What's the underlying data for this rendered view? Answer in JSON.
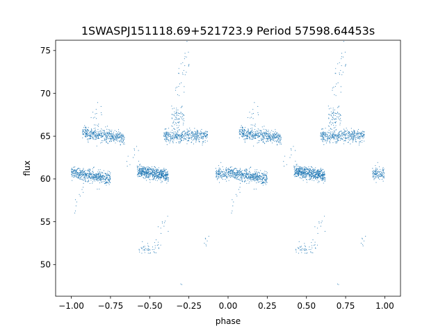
{
  "chart_data": {
    "type": "scatter",
    "title": "1SWASPJ151118.69+521723.9 Period 57598.64453s",
    "xlabel": "phase",
    "ylabel": "flux",
    "xlim": [
      -1.1,
      1.1
    ],
    "ylim": [
      46.3,
      76.2
    ],
    "x_ticks": [
      -1.0,
      -0.75,
      -0.5,
      -0.25,
      0.0,
      0.25,
      0.5,
      0.75,
      1.0
    ],
    "x_tick_labels": [
      "−1.00",
      "−0.75",
      "−0.50",
      "−0.25",
      "0.00",
      "0.25",
      "0.50",
      "0.75",
      "1.00"
    ],
    "y_ticks": [
      50,
      55,
      60,
      65,
      70,
      75
    ],
    "y_tick_labels": [
      "50",
      "55",
      "60",
      "65",
      "70",
      "75"
    ],
    "grid": false,
    "marker_color": "#1f77b4",
    "phase_period": 1.0,
    "series": [
      {
        "clusters": [
          {
            "x_range": [
              0.0,
              0.25
            ],
            "y_start": 60.8,
            "y_end": 60.0,
            "y_spread": 0.35,
            "count": 520
          },
          {
            "x_range": [
              0.07,
              0.34
            ],
            "y_start": 65.4,
            "y_end": 64.8,
            "y_spread": 0.35,
            "count": 460
          },
          {
            "x_range": [
              0.42,
              0.62
            ],
            "y_start": 60.9,
            "y_end": 60.4,
            "y_spread": 0.35,
            "count": 580
          },
          {
            "x_range": [
              0.59,
              0.87
            ],
            "y_start": 65.0,
            "y_end": 65.1,
            "y_spread": 0.35,
            "count": 430
          },
          {
            "x_range": [
              0.64,
              0.72
            ],
            "y_start": 67.3,
            "y_end": 67.3,
            "y_spread": 0.7,
            "count": 70
          },
          {
            "x_range": [
              0.66,
              0.76
            ],
            "y_start": 71.0,
            "y_end": 73.5,
            "y_spread": 1.3,
            "count": 30
          },
          {
            "x_range": [
              0.43,
              0.56
            ],
            "y_start": 51.8,
            "y_end": 52.0,
            "y_spread": 0.4,
            "count": 45
          },
          {
            "x_range": [
              0.52,
              0.62
            ],
            "y_start": 53.5,
            "y_end": 55.0,
            "y_spread": 0.9,
            "count": 12
          },
          {
            "x_range": [
              0.82,
              0.88
            ],
            "y_start": 52.4,
            "y_end": 52.8,
            "y_spread": 0.4,
            "count": 7
          },
          {
            "x_range": [
              0.92,
              1.0
            ],
            "y_start": 60.6,
            "y_end": 60.6,
            "y_spread": 0.35,
            "count": 120
          },
          {
            "x_range": [
              0.12,
              0.2
            ],
            "y_start": 66.5,
            "y_end": 68.0,
            "y_spread": 0.8,
            "count": 14
          },
          {
            "x_range": [
              0.02,
              0.08
            ],
            "y_start": 56.5,
            "y_end": 58.0,
            "y_spread": 0.8,
            "count": 10
          },
          {
            "x_range": [
              0.35,
              0.45
            ],
            "y_start": 62.0,
            "y_end": 63.5,
            "y_spread": 0.7,
            "count": 10
          },
          {
            "x_range": [
              0.69,
              0.72
            ],
            "y_start": 47.7,
            "y_end": 47.7,
            "y_spread": 0.1,
            "count": 2
          }
        ]
      }
    ]
  }
}
